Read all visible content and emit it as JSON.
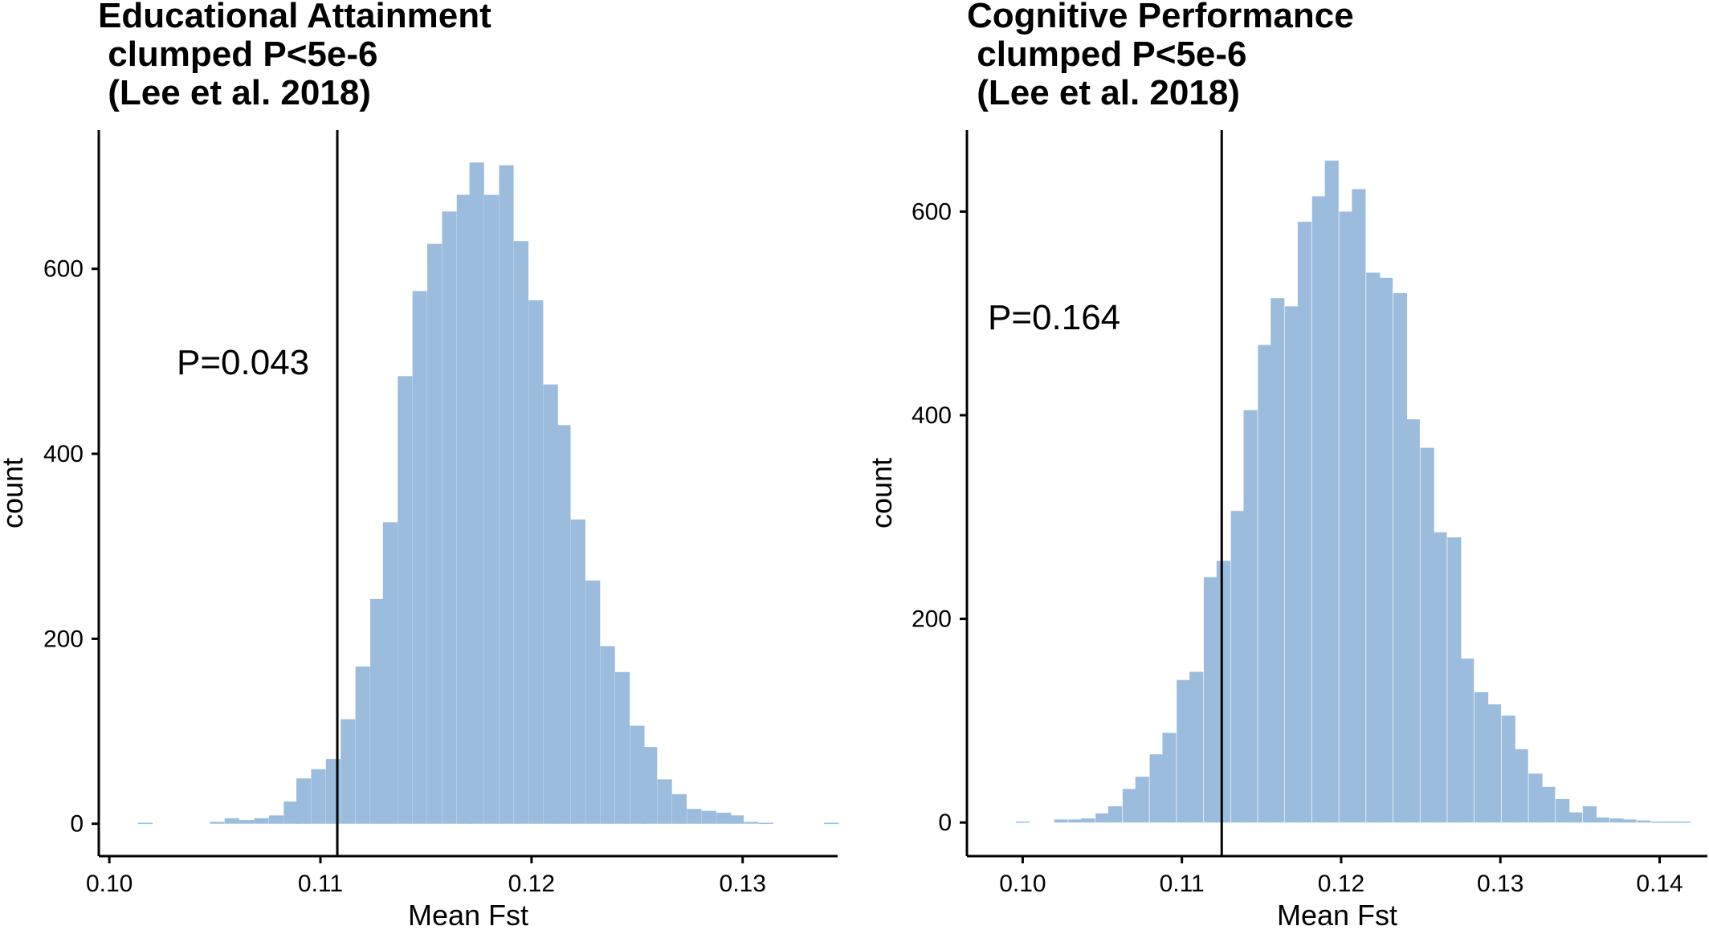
{
  "chart_data": [
    {
      "type": "bar",
      "title_lines": [
        "Educational Attainment",
        " clumped P<5e-6",
        " (Lee et al. 2018)"
      ],
      "xlabel": "Mean Fst",
      "ylabel": "count",
      "annotation": "P=0.043",
      "observed_x": 0.1108,
      "xlim": [
        0.0995,
        0.1345
      ],
      "ylim": [
        -35,
        750
      ],
      "x_ticks": [
        0.1,
        0.11,
        0.12,
        0.13
      ],
      "x_tick_labels": [
        "0.10",
        "0.11",
        "0.12",
        "0.13"
      ],
      "y_ticks": [
        0,
        200,
        400,
        600
      ],
      "y_tick_labels": [
        "0",
        "200",
        "400",
        "600"
      ],
      "bar_color": "#9bbcdd",
      "bin_width": 0.00068,
      "bin_centers": [
        0.1017,
        0.1051,
        0.1058,
        0.1065,
        0.1072,
        0.1079,
        0.1086,
        0.1092,
        0.1099,
        0.1106,
        0.1113,
        0.112,
        0.1127,
        0.1133,
        0.114,
        0.1147,
        0.1154,
        0.1161,
        0.1168,
        0.1174,
        0.1181,
        0.1188,
        0.1195,
        0.1202,
        0.1209,
        0.1215,
        0.1222,
        0.1229,
        0.1236,
        0.1243,
        0.125,
        0.1256,
        0.1263,
        0.127,
        0.1277,
        0.1284,
        0.1291,
        0.1297,
        0.1304,
        0.1311,
        0.1342
      ],
      "counts": [
        1,
        2,
        6,
        4,
        6,
        9,
        24,
        49,
        59,
        70,
        113,
        170,
        243,
        326,
        484,
        576,
        627,
        662,
        680,
        715,
        680,
        712,
        630,
        566,
        475,
        431,
        329,
        263,
        192,
        164,
        106,
        83,
        48,
        32,
        16,
        14,
        12,
        9,
        2,
        1,
        1
      ]
    },
    {
      "type": "bar",
      "title_lines": [
        "Cognitive Performance",
        " clumped P<5e-6",
        " (Lee et al. 2018)"
      ],
      "xlabel": "Mean Fst",
      "ylabel": "count",
      "annotation": "P=0.164",
      "observed_x": 0.1125,
      "xlim": [
        0.0965,
        0.143
      ],
      "ylim": [
        -33,
        680
      ],
      "x_ticks": [
        0.1,
        0.11,
        0.12,
        0.13,
        0.14
      ],
      "x_tick_labels": [
        "0.10",
        "0.11",
        "0.12",
        "0.13",
        "0.14"
      ],
      "y_ticks": [
        0,
        200,
        400,
        600
      ],
      "y_tick_labels": [
        "0",
        "200",
        "400",
        "600"
      ],
      "bar_color": "#9bbcdd",
      "bin_width": 0.00085,
      "bin_centers": [
        0.1,
        0.1024,
        0.1033,
        0.1041,
        0.105,
        0.1058,
        0.1067,
        0.1075,
        0.1084,
        0.1092,
        0.1101,
        0.1109,
        0.1118,
        0.1126,
        0.1135,
        0.1143,
        0.1152,
        0.116,
        0.1169,
        0.1177,
        0.1186,
        0.1194,
        0.1203,
        0.1211,
        0.122,
        0.1228,
        0.1237,
        0.1245,
        0.1254,
        0.1262,
        0.1271,
        0.1279,
        0.1288,
        0.1296,
        0.1305,
        0.1313,
        0.1322,
        0.133,
        0.1339,
        0.1347,
        0.1356,
        0.1364,
        0.1373,
        0.1381,
        0.139,
        0.1399,
        0.1407,
        0.1415
      ],
      "counts": [
        1,
        3,
        3,
        4,
        9,
        16,
        33,
        45,
        67,
        88,
        140,
        148,
        241,
        257,
        306,
        405,
        469,
        515,
        507,
        590,
        615,
        650,
        600,
        622,
        540,
        535,
        520,
        396,
        368,
        285,
        280,
        161,
        128,
        116,
        105,
        72,
        48,
        35,
        23,
        10,
        16,
        5,
        4,
        3,
        2,
        1,
        1,
        1
      ]
    }
  ]
}
